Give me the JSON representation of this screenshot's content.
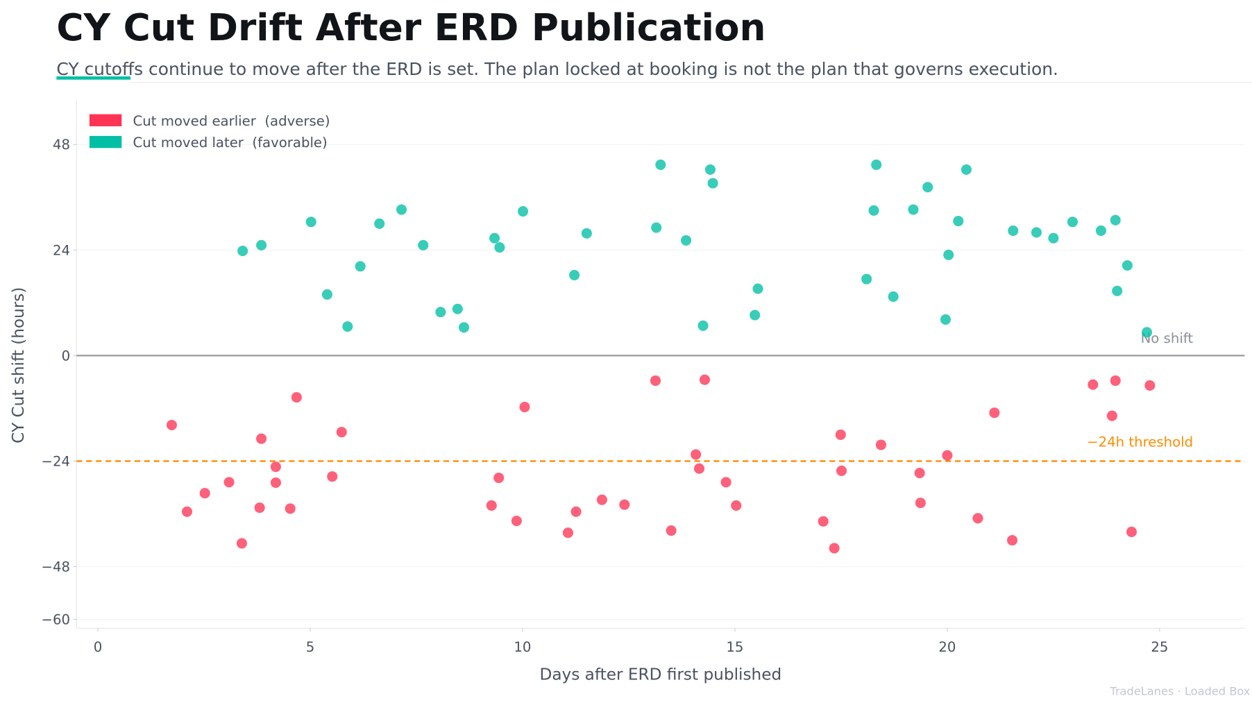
{
  "title": "CY Cut Drift After ERD Publication",
  "subtitle": "CY cutoffs continue to move after the ERD is set. The plan locked at booking is not the plan that governs execution.",
  "credit": "TradeLanes · Loaded Box",
  "colors": {
    "adverse": "#ff3355",
    "favorable": "#00bfa5",
    "threshold": "#ff8c00",
    "zero": "#9a9a9a",
    "accent": "#00bfa5"
  },
  "chart_data": {
    "type": "scatter",
    "xlabel": "Days after ERD first published",
    "ylabel": "CY Cut shift (hours)",
    "xlim": [
      -0.5,
      27
    ],
    "ylim": [
      -62,
      58
    ],
    "xticks": [
      0,
      5,
      10,
      15,
      20,
      25
    ],
    "yticks": [
      48,
      24,
      0,
      -24,
      -48,
      -60
    ],
    "ytick_labels": [
      "48",
      "24",
      "0",
      "−24",
      "−48",
      "−60"
    ],
    "grid": "horizontal",
    "legend_position": "top-left",
    "reference_lines": [
      {
        "y": 0,
        "label": "No shift",
        "style": "solid"
      },
      {
        "y": -24,
        "label": "−24h threshold",
        "style": "dashed"
      }
    ],
    "series": [
      {
        "name": "Cut moved earlier  (adverse)",
        "color": "#ff3355",
        "points": [
          [
            1.74,
            -15.8
          ],
          [
            2.1,
            -35.5
          ],
          [
            2.52,
            -31.3
          ],
          [
            3.09,
            -28.8
          ],
          [
            3.39,
            -42.7
          ],
          [
            3.81,
            -34.6
          ],
          [
            3.85,
            -18.9
          ],
          [
            4.19,
            -25.3
          ],
          [
            4.19,
            -28.9
          ],
          [
            4.53,
            -34.8
          ],
          [
            4.68,
            -9.5
          ],
          [
            5.52,
            -27.5
          ],
          [
            5.74,
            -17.4
          ],
          [
            9.27,
            -34.1
          ],
          [
            9.44,
            -27.8
          ],
          [
            9.86,
            -37.6
          ],
          [
            10.05,
            -11.7
          ],
          [
            11.07,
            -40.3
          ],
          [
            11.26,
            -35.5
          ],
          [
            11.87,
            -32.8
          ],
          [
            12.4,
            -33.9
          ],
          [
            13.13,
            -5.7
          ],
          [
            13.5,
            -39.8
          ],
          [
            14.08,
            -22.5
          ],
          [
            14.16,
            -25.7
          ],
          [
            14.29,
            -5.5
          ],
          [
            14.79,
            -28.8
          ],
          [
            15.03,
            -34.1
          ],
          [
            17.08,
            -37.7
          ],
          [
            17.34,
            -43.8
          ],
          [
            17.49,
            -18.0
          ],
          [
            17.51,
            -26.2
          ],
          [
            18.44,
            -20.3
          ],
          [
            19.35,
            -26.7
          ],
          [
            19.37,
            -33.5
          ],
          [
            20.0,
            -22.7
          ],
          [
            20.72,
            -37.0
          ],
          [
            21.11,
            -13.0
          ],
          [
            21.53,
            -42.0
          ],
          [
            23.43,
            -6.6
          ],
          [
            23.88,
            -13.7
          ],
          [
            23.96,
            -5.7
          ],
          [
            24.34,
            -40.1
          ],
          [
            24.77,
            -6.8
          ]
        ]
      },
      {
        "name": "Cut moved later  (favorable)",
        "color": "#00bfa5",
        "points": [
          [
            3.41,
            23.8
          ],
          [
            3.85,
            25.1
          ],
          [
            5.02,
            30.4
          ],
          [
            5.4,
            13.9
          ],
          [
            5.88,
            6.6
          ],
          [
            6.18,
            20.3
          ],
          [
            6.63,
            30.0
          ],
          [
            7.15,
            33.2
          ],
          [
            7.66,
            25.1
          ],
          [
            8.07,
            9.9
          ],
          [
            8.47,
            10.6
          ],
          [
            8.62,
            6.4
          ],
          [
            9.34,
            26.7
          ],
          [
            9.46,
            24.6
          ],
          [
            10.01,
            32.8
          ],
          [
            11.22,
            18.3
          ],
          [
            11.51,
            27.8
          ],
          [
            13.15,
            29.1
          ],
          [
            13.25,
            43.4
          ],
          [
            13.85,
            26.2
          ],
          [
            14.25,
            6.8
          ],
          [
            14.42,
            42.3
          ],
          [
            14.48,
            39.2
          ],
          [
            15.47,
            9.2
          ],
          [
            15.54,
            15.2
          ],
          [
            18.1,
            17.4
          ],
          [
            18.27,
            33.0
          ],
          [
            18.33,
            43.4
          ],
          [
            18.73,
            13.4
          ],
          [
            19.2,
            33.2
          ],
          [
            19.54,
            38.3
          ],
          [
            19.96,
            8.2
          ],
          [
            20.03,
            22.9
          ],
          [
            20.26,
            30.6
          ],
          [
            20.45,
            42.3
          ],
          [
            21.55,
            28.4
          ],
          [
            22.1,
            28.0
          ],
          [
            22.5,
            26.7
          ],
          [
            22.95,
            30.4
          ],
          [
            23.62,
            28.4
          ],
          [
            23.96,
            30.8
          ],
          [
            24.0,
            14.7
          ],
          [
            24.24,
            20.5
          ],
          [
            24.7,
            5.3
          ]
        ]
      }
    ]
  }
}
